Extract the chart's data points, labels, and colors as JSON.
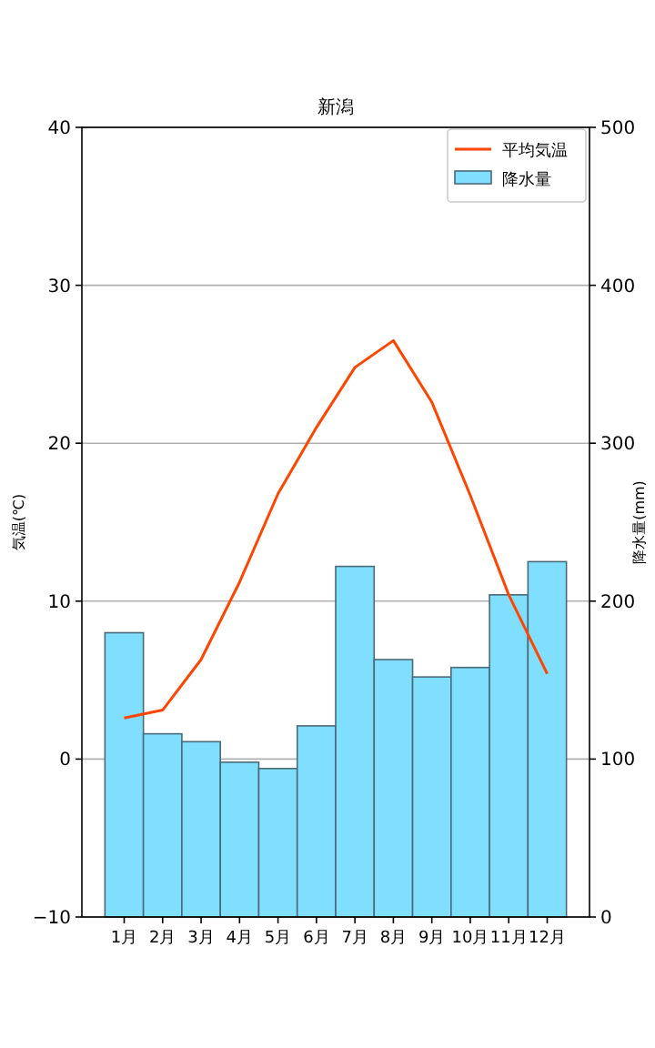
{
  "chart_data": {
    "type": "bar",
    "title": "新潟",
    "ylabel": "気温(℃)",
    "y2label": "降水量(mm)",
    "categories": [
      "1月",
      "2月",
      "3月",
      "4月",
      "5月",
      "6月",
      "7月",
      "8月",
      "9月",
      "10月",
      "11月",
      "12月"
    ],
    "series": [
      {
        "name": "平均気温",
        "type": "line",
        "color": "#ff4500",
        "values": [
          2.6,
          3.1,
          6.3,
          11.2,
          16.8,
          21.0,
          24.8,
          26.5,
          22.6,
          16.7,
          10.4,
          5.4
        ]
      },
      {
        "name": "降水量",
        "axis": "y2",
        "color": "#80dfff",
        "values": [
          180,
          116,
          111,
          98,
          94,
          121,
          222,
          163,
          152,
          158,
          204,
          225
        ]
      }
    ],
    "ylim": [
      -10,
      40
    ],
    "yticks": [
      -10,
      0,
      10,
      20,
      30,
      40
    ],
    "y2lim": [
      0,
      500
    ],
    "y2ticks": [
      0,
      100,
      200,
      300,
      400,
      500
    ],
    "grid": "y",
    "legend": "top right"
  }
}
